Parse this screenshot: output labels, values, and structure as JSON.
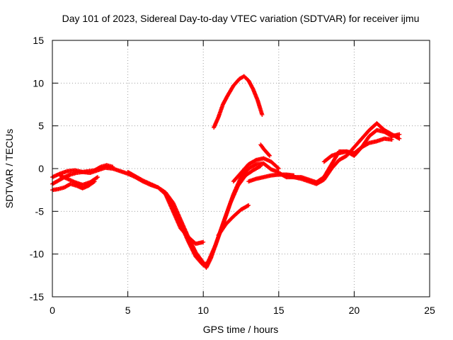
{
  "chart_data": {
    "type": "scatter",
    "title": "Day 101 of 2023, Sidereal Day-to-day VTEC variation (SDTVAR) for receiver ijmu",
    "xlabel": "GPS time / hours",
    "ylabel": "SDTVAR / TECUs",
    "xlim": [
      0,
      25
    ],
    "ylim": [
      -15,
      15
    ],
    "xticks": [
      "0",
      "5",
      "10",
      "15",
      "20",
      "25"
    ],
    "yticks": [
      "15",
      "10",
      "5",
      "0",
      "-5",
      "-10",
      "-15"
    ],
    "xtick_values": [
      0,
      5,
      10,
      15,
      20,
      25
    ],
    "ytick_values": [
      15,
      10,
      5,
      0,
      -5,
      -10,
      -15
    ],
    "grid": true,
    "marker": "+",
    "series": [
      {
        "color": "#ff0000",
        "tracks": [
          {
            "x": [
              0.0,
              0.5,
              1.0,
              1.5,
              2.0,
              2.5,
              3.0,
              3.5,
              4.0,
              4.5,
              5.0
            ],
            "y": [
              -1.0,
              -0.6,
              -0.3,
              -0.2,
              -0.4,
              -0.5,
              -0.2,
              0.1,
              0.0,
              -0.3,
              -0.6
            ]
          },
          {
            "x": [
              0.0,
              0.4,
              0.8,
              1.2,
              1.6,
              2.0,
              2.4,
              2.8,
              3.2,
              3.6,
              4.0
            ],
            "y": [
              -1.8,
              -1.4,
              -1.0,
              -0.7,
              -0.5,
              -0.4,
              -0.3,
              -0.2,
              0.2,
              0.4,
              0.2
            ]
          },
          {
            "x": [
              0.0,
              0.4,
              0.8,
              1.2,
              1.6,
              2.0,
              2.4,
              2.8
            ],
            "y": [
              -2.5,
              -2.4,
              -2.2,
              -1.8,
              -2.0,
              -2.3,
              -2.0,
              -1.5
            ]
          },
          {
            "x": [
              0.5,
              1.0,
              1.5,
              2.0,
              2.5,
              3.0
            ],
            "y": [
              -0.8,
              -1.2,
              -1.6,
              -1.9,
              -1.6,
              -1.0
            ]
          },
          {
            "x": [
              5.0,
              5.5,
              6.0,
              6.5,
              7.0,
              7.5,
              8.0,
              8.5,
              9.0,
              9.5,
              10.0,
              10.2,
              10.5,
              11.0,
              11.5,
              12.0,
              12.5,
              13.0,
              13.5,
              14.0,
              14.5,
              15.0
            ],
            "y": [
              -0.6,
              -1.0,
              -1.5,
              -1.9,
              -2.2,
              -2.8,
              -4.0,
              -6.0,
              -8.0,
              -9.8,
              -11.0,
              -11.6,
              -10.5,
              -8.0,
              -5.5,
              -3.0,
              -1.0,
              0.0,
              0.5,
              0.6,
              -0.1,
              -0.4
            ]
          },
          {
            "x": [
              5.0,
              5.5,
              6.0,
              6.5,
              7.0,
              7.5,
              8.0,
              8.5,
              9.0,
              9.5,
              10.0,
              10.3,
              10.8,
              11.3,
              11.8,
              12.3,
              12.8,
              13.3,
              13.8
            ],
            "y": [
              -0.4,
              -0.9,
              -1.4,
              -1.8,
              -2.2,
              -3.0,
              -4.5,
              -6.5,
              -8.5,
              -10.3,
              -11.3,
              -11.0,
              -9.0,
              -6.5,
              -4.0,
              -2.0,
              -0.8,
              -0.2,
              0.3
            ]
          },
          {
            "x": [
              7.5,
              8.0,
              8.5,
              9.0,
              9.5,
              10.0
            ],
            "y": [
              -3.0,
              -5.0,
              -7.0,
              -8.0,
              -8.8,
              -8.6
            ]
          },
          {
            "x": [
              11.0,
              11.5,
              12.0,
              12.5,
              13.0
            ],
            "y": [
              -7.8,
              -6.5,
              -5.6,
              -4.8,
              -4.3
            ]
          },
          {
            "x": [
              12.0,
              12.5,
              13.0,
              13.5,
              14.0,
              14.5,
              15.0
            ],
            "y": [
              -1.5,
              -0.5,
              0.5,
              1.0,
              1.2,
              0.8,
              0.0
            ]
          },
          {
            "x": [
              13.0,
              13.5,
              14.0,
              14.5,
              15.0,
              15.5,
              16.0
            ],
            "y": [
              -1.5,
              -1.2,
              -1.0,
              -0.8,
              -0.7,
              -0.7,
              -0.8
            ]
          },
          {
            "x": [
              13.8,
              14.0,
              14.2,
              14.4
            ],
            "y": [
              2.8,
              2.3,
              1.9,
              1.5
            ]
          },
          {
            "x": [
              15.0,
              15.5,
              16.0,
              16.5,
              17.0,
              17.5,
              18.0,
              18.5,
              19.0,
              19.5,
              20.0,
              20.5,
              21.0,
              21.5,
              22.0,
              22.5,
              23.0
            ],
            "y": [
              -0.5,
              -1.0,
              -1.0,
              -1.2,
              -1.5,
              -1.8,
              -1.3,
              0.0,
              1.0,
              1.5,
              2.5,
              3.5,
              4.5,
              5.3,
              4.5,
              4.0,
              3.5
            ]
          },
          {
            "x": [
              15.5,
              16.0,
              16.5,
              17.0,
              17.5,
              18.0,
              18.5,
              19.0,
              19.5,
              20.0,
              20.5,
              21.0,
              21.5,
              22.0,
              22.5,
              23.0
            ],
            "y": [
              -0.8,
              -1.0,
              -1.0,
              -1.3,
              -1.6,
              -1.0,
              0.5,
              2.0,
              2.0,
              1.5,
              2.5,
              3.8,
              4.5,
              4.3,
              3.8,
              4.0
            ]
          },
          {
            "x": [
              18.0,
              18.5,
              19.0,
              19.5,
              20.0,
              20.5,
              21.0,
              21.5,
              22.0,
              22.5
            ],
            "y": [
              0.8,
              1.5,
              1.8,
              2.0,
              1.8,
              2.5,
              3.0,
              3.2,
              3.5,
              3.4
            ]
          },
          {
            "x": [
              10.7,
              11.0,
              11.3,
              11.6,
              12.0,
              12.4,
              12.7,
              13.0,
              13.3,
              13.6,
              13.9
            ],
            "y": [
              4.8,
              6.0,
              7.5,
              8.5,
              9.7,
              10.5,
              10.8,
              10.3,
              9.3,
              8.0,
              6.3
            ]
          }
        ]
      }
    ]
  }
}
